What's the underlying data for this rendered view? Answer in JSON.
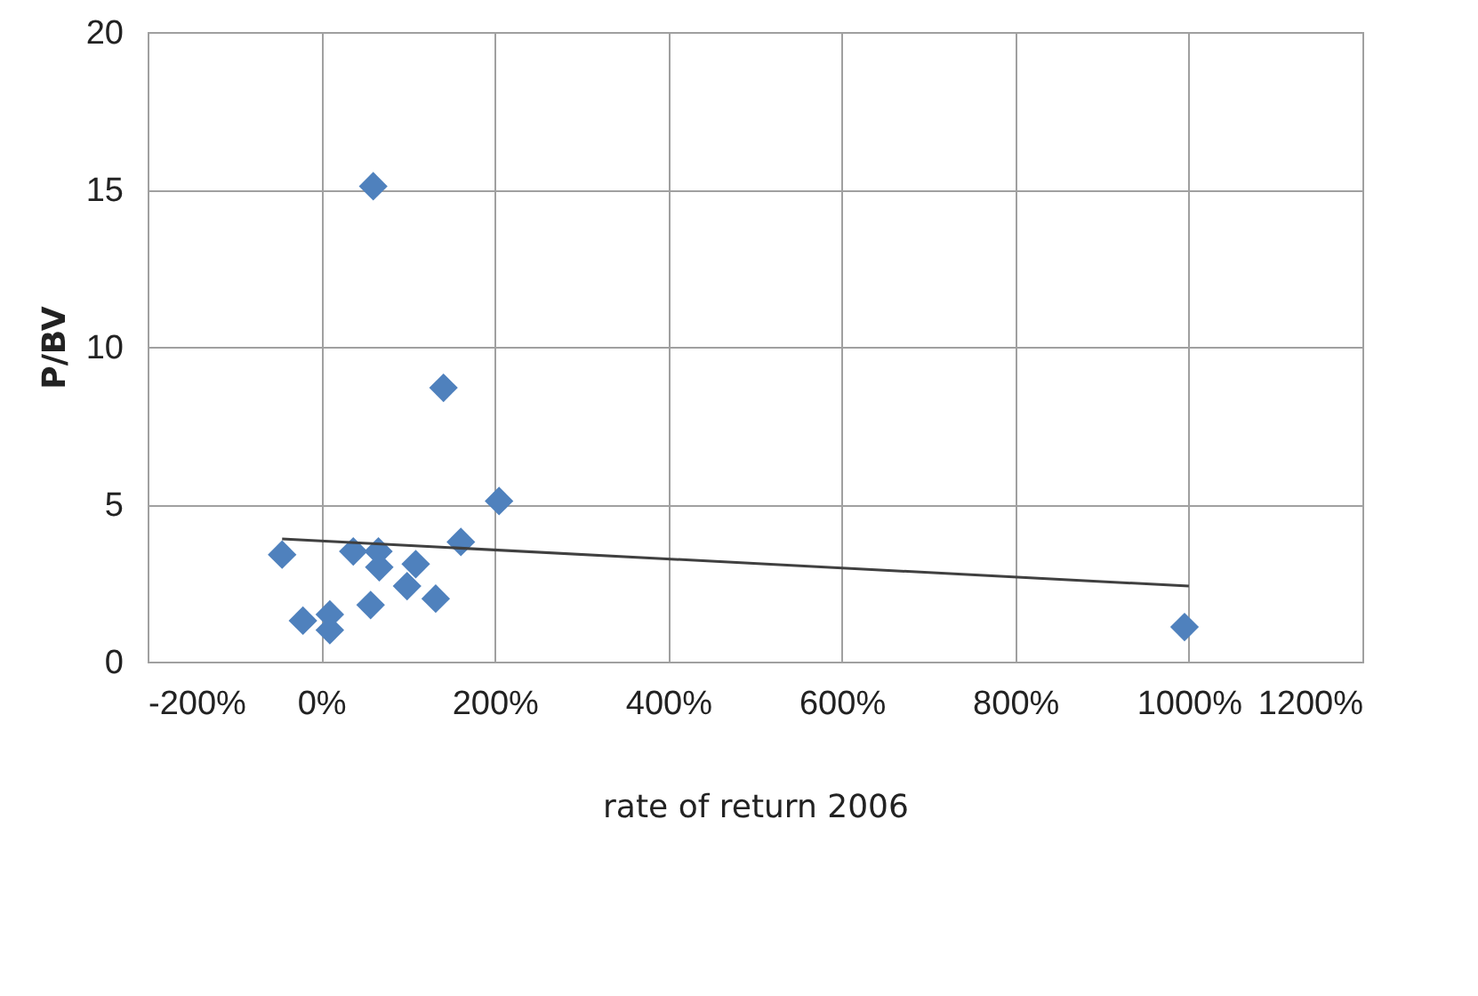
{
  "chart_data": {
    "type": "scatter",
    "xlabel": "rate of return 2006",
    "ylabel": "P/BV",
    "xlim": [
      -200,
      1200
    ],
    "ylim": [
      0,
      20
    ],
    "xticks": [
      {
        "value": -200,
        "label": "-200%"
      },
      {
        "value": 0,
        "label": "0%"
      },
      {
        "value": 200,
        "label": "200%"
      },
      {
        "value": 400,
        "label": "400%"
      },
      {
        "value": 600,
        "label": "600%"
      },
      {
        "value": 800,
        "label": "800%"
      },
      {
        "value": 1000,
        "label": "1000%"
      },
      {
        "value": 1200,
        "label": "1200%"
      }
    ],
    "yticks": [
      0,
      5,
      10,
      15,
      20
    ],
    "grid": true,
    "marker": "diamond",
    "series": [
      {
        "color": "#4f81bd",
        "x": [
          -45,
          -21,
          10,
          10,
          37,
          66,
          60,
          57,
          67,
          99,
          109,
          132,
          141,
          161,
          205,
          995
        ],
        "values": [
          3.4,
          1.3,
          1.5,
          1.0,
          3.5,
          3.5,
          15.1,
          1.8,
          3.0,
          2.4,
          3.1,
          2.0,
          8.7,
          3.8,
          5.1,
          1.1
        ]
      },
      {
        "type": "line",
        "color": "#404040",
        "marker": "none",
        "x": [
          -45,
          1000
        ],
        "values": [
          3.9,
          2.4
        ]
      }
    ]
  }
}
